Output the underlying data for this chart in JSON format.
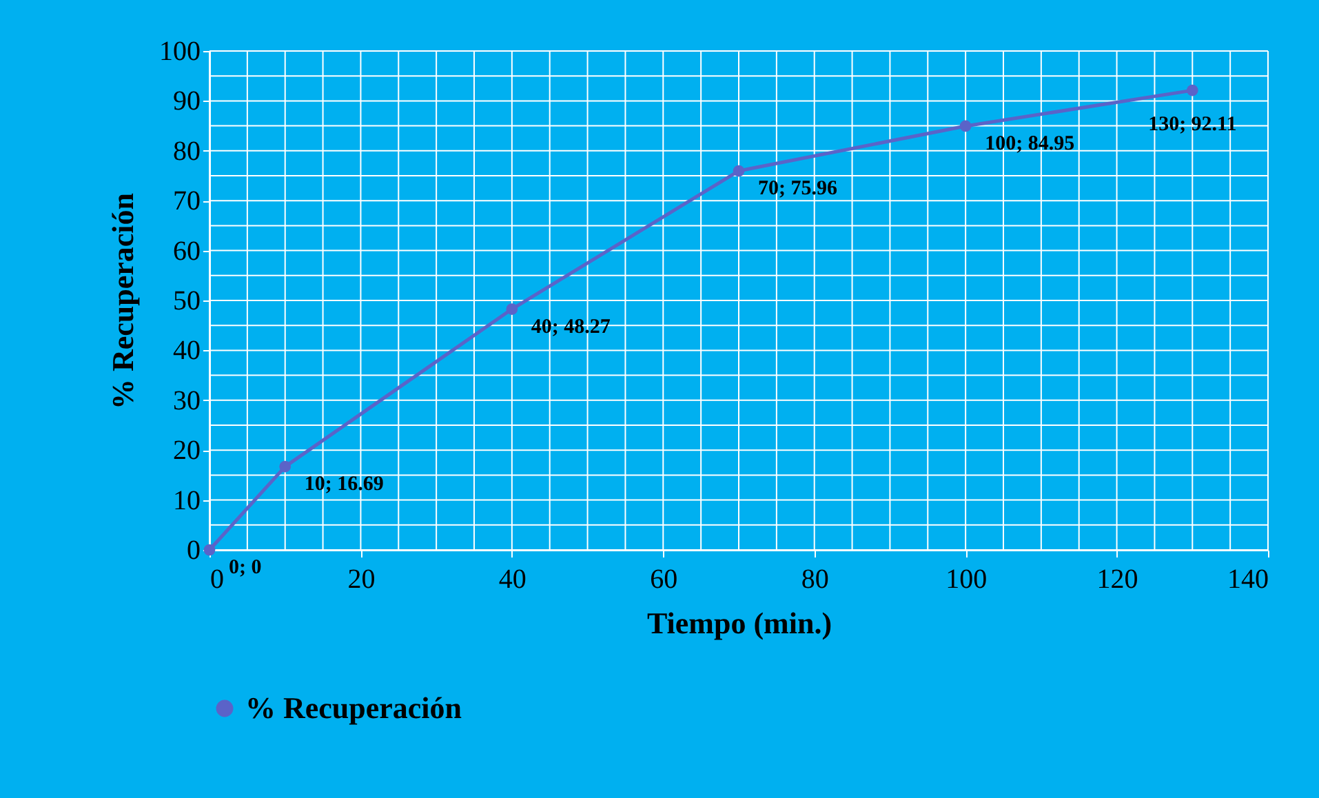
{
  "chart_data": {
    "type": "line",
    "xlabel": "Tiempo (min.)",
    "ylabel": "% Recuperación",
    "x": [
      0,
      10,
      40,
      70,
      100,
      130
    ],
    "series": [
      {
        "name": "% Recuperación",
        "color": "#5b63c8",
        "values": [
          0,
          16.69,
          48.27,
          75.96,
          84.95,
          92.11
        ],
        "value_labels": [
          "0; 0",
          "10; 16.69",
          "40; 48.27",
          "70; 75.96",
          "100; 84.95",
          "130; 92.11"
        ]
      }
    ],
    "xlim": [
      0,
      140
    ],
    "ylim": [
      0,
      100
    ],
    "xticks": [
      0,
      {
        "value": 5,
        "label": null
      },
      {
        "value": 10,
        "label": null
      },
      {
        "value": 15,
        "label": null
      },
      20,
      {
        "value": 25,
        "label": null
      },
      {
        "value": 30,
        "label": null
      },
      {
        "value": 35,
        "label": null
      },
      40,
      {
        "value": 45,
        "label": null
      },
      {
        "value": 50,
        "label": null
      },
      {
        "value": 55,
        "label": null
      },
      60,
      {
        "value": 65,
        "label": null
      },
      {
        "value": 70,
        "label": null
      },
      {
        "value": 75,
        "label": null
      },
      80,
      {
        "value": 85,
        "label": null
      },
      {
        "value": 90,
        "label": null
      },
      {
        "value": 95,
        "label": null
      },
      100,
      {
        "value": 105,
        "label": null
      },
      {
        "value": 110,
        "label": null
      },
      {
        "value": 115,
        "label": null
      },
      120,
      {
        "value": 125,
        "label": null
      },
      {
        "value": 130,
        "label": null
      },
      {
        "value": 135,
        "label": null
      },
      140
    ],
    "yticks": [
      0,
      {
        "value": 5,
        "label": null
      },
      10,
      {
        "value": 15,
        "label": null
      },
      20,
      {
        "value": 25,
        "label": null
      },
      30,
      {
        "value": 35,
        "label": null
      },
      40,
      {
        "value": 45,
        "label": null
      },
      50,
      {
        "value": 55,
        "label": null
      },
      60,
      {
        "value": 65,
        "label": null
      },
      70,
      {
        "value": 75,
        "label": null
      },
      80,
      {
        "value": 85,
        "label": null
      },
      90,
      {
        "value": 95,
        "label": null
      },
      100
    ],
    "grid": true,
    "legend": "bottom",
    "marker": "circle",
    "line_style": "solid"
  }
}
